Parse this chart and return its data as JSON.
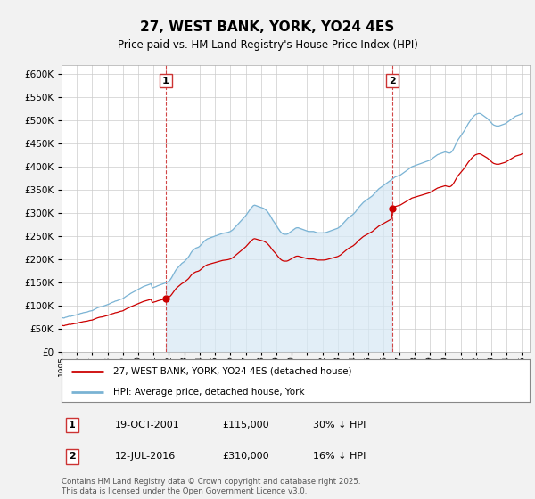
{
  "title": "27, WEST BANK, YORK, YO24 4ES",
  "subtitle": "Price paid vs. HM Land Registry's House Price Index (HPI)",
  "hpi_color": "#7ab3d4",
  "hpi_fill_color": "#d6e8f5",
  "price_color": "#cc0000",
  "vline_color": "#cc3333",
  "background_color": "#f2f2f2",
  "plot_bg_color": "#ffffff",
  "ylim": [
    0,
    620000
  ],
  "yticks": [
    0,
    50000,
    100000,
    150000,
    200000,
    250000,
    300000,
    350000,
    400000,
    450000,
    500000,
    550000,
    600000
  ],
  "sale1_date": "19-OCT-2001",
  "sale1_price": 115000,
  "sale1_label": "30% ↓ HPI",
  "sale1_x": 2001.8,
  "sale2_date": "12-JUL-2016",
  "sale2_price": 310000,
  "sale2_label": "16% ↓ HPI",
  "sale2_x": 2016.55,
  "copyright": "Contains HM Land Registry data © Crown copyright and database right 2025.\nThis data is licensed under the Open Government Licence v3.0.",
  "legend_price": "27, WEST BANK, YORK, YO24 4ES (detached house)",
  "legend_hpi": "HPI: Average price, detached house, York",
  "xlim_start": 1995,
  "xlim_end": 2025.5,
  "hpi_monthly": {
    "years": [
      1995.0,
      1995.083,
      1995.167,
      1995.25,
      1995.333,
      1995.417,
      1995.5,
      1995.583,
      1995.667,
      1995.75,
      1995.833,
      1995.917,
      1996.0,
      1996.083,
      1996.167,
      1996.25,
      1996.333,
      1996.417,
      1996.5,
      1996.583,
      1996.667,
      1996.75,
      1996.833,
      1996.917,
      1997.0,
      1997.083,
      1997.167,
      1997.25,
      1997.333,
      1997.417,
      1997.5,
      1997.583,
      1997.667,
      1997.75,
      1997.833,
      1997.917,
      1998.0,
      1998.083,
      1998.167,
      1998.25,
      1998.333,
      1998.417,
      1998.5,
      1998.583,
      1998.667,
      1998.75,
      1998.833,
      1998.917,
      1999.0,
      1999.083,
      1999.167,
      1999.25,
      1999.333,
      1999.417,
      1999.5,
      1999.583,
      1999.667,
      1999.75,
      1999.833,
      1999.917,
      2000.0,
      2000.083,
      2000.167,
      2000.25,
      2000.333,
      2000.417,
      2000.5,
      2000.583,
      2000.667,
      2000.75,
      2000.833,
      2000.917,
      2001.0,
      2001.083,
      2001.167,
      2001.25,
      2001.333,
      2001.417,
      2001.5,
      2001.583,
      2001.667,
      2001.75,
      2001.833,
      2001.917,
      2002.0,
      2002.083,
      2002.167,
      2002.25,
      2002.333,
      2002.417,
      2002.5,
      2002.583,
      2002.667,
      2002.75,
      2002.833,
      2002.917,
      2003.0,
      2003.083,
      2003.167,
      2003.25,
      2003.333,
      2003.417,
      2003.5,
      2003.583,
      2003.667,
      2003.75,
      2003.833,
      2003.917,
      2004.0,
      2004.083,
      2004.167,
      2004.25,
      2004.333,
      2004.417,
      2004.5,
      2004.583,
      2004.667,
      2004.75,
      2004.833,
      2004.917,
      2005.0,
      2005.083,
      2005.167,
      2005.25,
      2005.333,
      2005.417,
      2005.5,
      2005.583,
      2005.667,
      2005.75,
      2005.833,
      2005.917,
      2006.0,
      2006.083,
      2006.167,
      2006.25,
      2006.333,
      2006.417,
      2006.5,
      2006.583,
      2006.667,
      2006.75,
      2006.833,
      2006.917,
      2007.0,
      2007.083,
      2007.167,
      2007.25,
      2007.333,
      2007.417,
      2007.5,
      2007.583,
      2007.667,
      2007.75,
      2007.833,
      2007.917,
      2008.0,
      2008.083,
      2008.167,
      2008.25,
      2008.333,
      2008.417,
      2008.5,
      2008.583,
      2008.667,
      2008.75,
      2008.833,
      2008.917,
      2009.0,
      2009.083,
      2009.167,
      2009.25,
      2009.333,
      2009.417,
      2009.5,
      2009.583,
      2009.667,
      2009.75,
      2009.833,
      2009.917,
      2010.0,
      2010.083,
      2010.167,
      2010.25,
      2010.333,
      2010.417,
      2010.5,
      2010.583,
      2010.667,
      2010.75,
      2010.833,
      2010.917,
      2011.0,
      2011.083,
      2011.167,
      2011.25,
      2011.333,
      2011.417,
      2011.5,
      2011.583,
      2011.667,
      2011.75,
      2011.833,
      2011.917,
      2012.0,
      2012.083,
      2012.167,
      2012.25,
      2012.333,
      2012.417,
      2012.5,
      2012.583,
      2012.667,
      2012.75,
      2012.833,
      2012.917,
      2013.0,
      2013.083,
      2013.167,
      2013.25,
      2013.333,
      2013.417,
      2013.5,
      2013.583,
      2013.667,
      2013.75,
      2013.833,
      2013.917,
      2014.0,
      2014.083,
      2014.167,
      2014.25,
      2014.333,
      2014.417,
      2014.5,
      2014.583,
      2014.667,
      2014.75,
      2014.833,
      2014.917,
      2015.0,
      2015.083,
      2015.167,
      2015.25,
      2015.333,
      2015.417,
      2015.5,
      2015.583,
      2015.667,
      2015.75,
      2015.833,
      2015.917,
      2016.0,
      2016.083,
      2016.167,
      2016.25,
      2016.333,
      2016.417,
      2016.5,
      2016.583,
      2016.667,
      2016.75,
      2016.833,
      2016.917,
      2017.0,
      2017.083,
      2017.167,
      2017.25,
      2017.333,
      2017.417,
      2017.5,
      2017.583,
      2017.667,
      2017.75,
      2017.833,
      2017.917,
      2018.0,
      2018.083,
      2018.167,
      2018.25,
      2018.333,
      2018.417,
      2018.5,
      2018.583,
      2018.667,
      2018.75,
      2018.833,
      2018.917,
      2019.0,
      2019.083,
      2019.167,
      2019.25,
      2019.333,
      2019.417,
      2019.5,
      2019.583,
      2019.667,
      2019.75,
      2019.833,
      2019.917,
      2020.0,
      2020.083,
      2020.167,
      2020.25,
      2020.333,
      2020.417,
      2020.5,
      2020.583,
      2020.667,
      2020.75,
      2020.833,
      2020.917,
      2021.0,
      2021.083,
      2021.167,
      2021.25,
      2021.333,
      2021.417,
      2021.5,
      2021.583,
      2021.667,
      2021.75,
      2021.833,
      2021.917,
      2022.0,
      2022.083,
      2022.167,
      2022.25,
      2022.333,
      2022.417,
      2022.5,
      2022.583,
      2022.667,
      2022.75,
      2022.833,
      2022.917,
      2023.0,
      2023.083,
      2023.167,
      2023.25,
      2023.333,
      2023.417,
      2023.5,
      2023.583,
      2023.667,
      2023.75,
      2023.833,
      2023.917,
      2024.0,
      2024.083,
      2024.167,
      2024.25,
      2024.333,
      2024.417,
      2024.5,
      2024.583,
      2024.667,
      2024.75,
      2024.833,
      2024.917,
      2025.0
    ],
    "values": [
      74000,
      73500,
      73000,
      74500,
      75000,
      76000,
      77000,
      76500,
      77500,
      78000,
      79000,
      79500,
      80000,
      81000,
      82000,
      83000,
      83500,
      84500,
      85000,
      85500,
      86000,
      87000,
      88000,
      88500,
      89000,
      90500,
      92000,
      93500,
      95000,
      96000,
      97000,
      97500,
      98000,
      99000,
      100000,
      101000,
      102000,
      103000,
      104500,
      106000,
      107000,
      108000,
      109500,
      110000,
      111000,
      112000,
      113500,
      114000,
      115000,
      117000,
      119000,
      121000,
      122500,
      124000,
      126000,
      127500,
      129000,
      130500,
      132000,
      133500,
      135000,
      136500,
      138000,
      139500,
      141000,
      142000,
      143000,
      144000,
      145000,
      146000,
      147000,
      138000,
      139000,
      140000,
      141000,
      142500,
      143500,
      144500,
      145500,
      146500,
      147500,
      148500,
      149500,
      151000,
      153000,
      156000,
      160000,
      165000,
      170000,
      175000,
      179000,
      182000,
      185000,
      188000,
      191000,
      193000,
      195000,
      198000,
      201000,
      204000,
      208000,
      213000,
      217000,
      220000,
      222000,
      224000,
      225000,
      226000,
      228000,
      231000,
      234000,
      237000,
      240000,
      242000,
      244000,
      245000,
      246000,
      247000,
      248000,
      249000,
      250000,
      251000,
      252000,
      253000,
      254000,
      255000,
      256000,
      256500,
      257000,
      257500,
      258000,
      259000,
      260000,
      262000,
      264000,
      267000,
      270000,
      273000,
      276000,
      279000,
      282000,
      285000,
      288000,
      291000,
      294000,
      298000,
      302000,
      306000,
      310000,
      313000,
      316000,
      317000,
      316000,
      315000,
      314000,
      313000,
      312000,
      311000,
      310000,
      308000,
      306000,
      303000,
      299000,
      295000,
      290000,
      285000,
      281000,
      277000,
      273000,
      268000,
      264000,
      260000,
      257000,
      255000,
      254000,
      254000,
      254000,
      255000,
      257000,
      259000,
      261000,
      263000,
      265000,
      267000,
      268000,
      268000,
      267000,
      266000,
      265000,
      264000,
      263000,
      262000,
      261000,
      260000,
      260000,
      260000,
      260000,
      260000,
      259000,
      258000,
      257000,
      257000,
      257000,
      257000,
      257000,
      257000,
      257500,
      258000,
      259000,
      260000,
      261000,
      262000,
      263000,
      264000,
      265000,
      266000,
      267000,
      269000,
      271000,
      274000,
      277000,
      280000,
      283000,
      286000,
      289000,
      291000,
      293000,
      295000,
      297000,
      300000,
      303000,
      307000,
      311000,
      314000,
      317000,
      320000,
      323000,
      325000,
      327000,
      329000,
      331000,
      333000,
      335000,
      337000,
      340000,
      343000,
      346000,
      349000,
      352000,
      354000,
      356000,
      358000,
      360000,
      362000,
      364000,
      366000,
      368000,
      370000,
      372000,
      374000,
      376000,
      378000,
      379000,
      380000,
      381000,
      382000,
      384000,
      386000,
      388000,
      390000,
      392000,
      394000,
      396000,
      398000,
      400000,
      401000,
      402000,
      403000,
      404000,
      405000,
      406000,
      407000,
      408000,
      409000,
      410000,
      411000,
      412000,
      413000,
      414000,
      416000,
      418000,
      420000,
      422000,
      424000,
      426000,
      427000,
      428000,
      429000,
      430000,
      431000,
      432000,
      431000,
      430000,
      429000,
      430000,
      432000,
      436000,
      441000,
      447000,
      453000,
      458000,
      462000,
      466000,
      470000,
      474000,
      478000,
      483000,
      488000,
      493000,
      497000,
      501000,
      505000,
      508000,
      511000,
      513000,
      514000,
      515000,
      515000,
      514000,
      512000,
      510000,
      508000,
      506000,
      504000,
      501000,
      498000,
      495000,
      492000,
      490000,
      489000,
      488000,
      488000,
      488000,
      489000,
      490000,
      491000,
      492000,
      493000,
      495000,
      497000,
      499000,
      501000,
      503000,
      505000,
      507000,
      509000,
      510000,
      511000,
      512000,
      513000,
      515000
    ]
  }
}
